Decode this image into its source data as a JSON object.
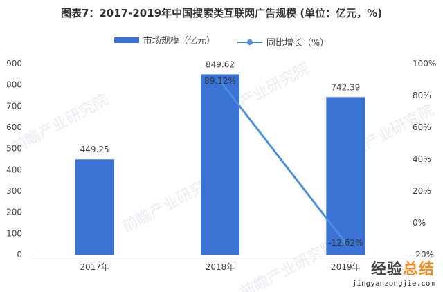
{
  "chart_data": {
    "type": "bar",
    "title": "图表7：2017-2019年中国搜索类互联网广告规模 (单位：亿元，%)",
    "categories": [
      "2017年",
      "2018年",
      "2019年"
    ],
    "series": [
      {
        "name": "市场规模（亿元）",
        "type": "bar",
        "axis": "left",
        "values": [
          449.25,
          849.62,
          742.39
        ],
        "labels": [
          "449.25",
          "849.62",
          "742.39"
        ]
      },
      {
        "name": "同比增长（%）",
        "type": "line",
        "axis": "right",
        "values": [
          null,
          89.12,
          -12.62
        ],
        "labels": [
          "",
          "89.12%",
          "-12.62%"
        ]
      }
    ],
    "y_left": {
      "min": 0,
      "max": 900,
      "ticks": [
        "0",
        "100",
        "200",
        "300",
        "400",
        "500",
        "600",
        "700",
        "800",
        "900"
      ]
    },
    "y_right": {
      "min": -20,
      "max": 100,
      "ticks": [
        "-20%",
        "0%",
        "20%",
        "40%",
        "60%",
        "80%",
        "100%"
      ]
    },
    "legend_position": "top",
    "grid": false,
    "colors": {
      "bar": "#3b73d4",
      "line": "#4a8fd9"
    }
  },
  "watermark": {
    "text": "前瞻产业研究院"
  },
  "footer": {
    "brand_main": "经验",
    "brand_accent": "总结",
    "url": "jingyanzongjie.com"
  }
}
